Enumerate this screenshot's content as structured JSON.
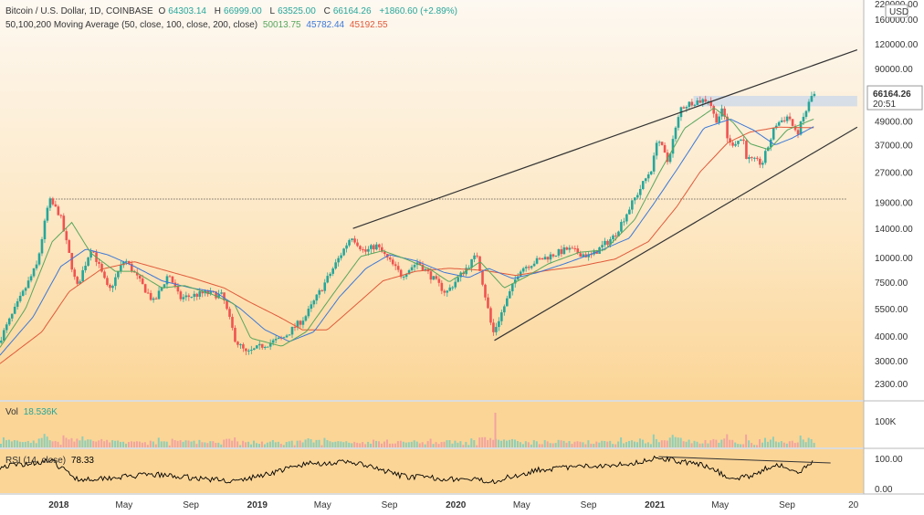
{
  "legend": {
    "symbol": "Bitcoin / U.S. Dollar, 1D, COINBASE",
    "o_label": "O",
    "o_val": "64303.14",
    "h_label": "H",
    "h_val": "66999.00",
    "l_label": "L",
    "l_val": "63525.00",
    "c_label": "C",
    "c_val": "66164.26",
    "change": "+1860.60 (+2.89%)",
    "ma_title": "50,100,200 Moving Average (50, close, 100, close, 200, close)",
    "ma50": "50013.75",
    "ma100": "45782.44",
    "ma200": "45192.55"
  },
  "colors": {
    "ma50": "#58a65c",
    "ma100": "#3c78d8",
    "ma200": "#e05a3a",
    "up": "#26a69a",
    "down": "#ef5350",
    "text": "#333333",
    "bg_top": "#fdf6ee",
    "bg_bottom": "#fbd89e"
  },
  "price_label": {
    "value": "66164.26",
    "countdown": "20:51"
  },
  "currency": "USD",
  "vol": {
    "label": "Vol",
    "value": "18.536K",
    "axis_label": "100K"
  },
  "rsi": {
    "label": "RSI (14, close)",
    "value": "78.33",
    "axis": [
      "100.00",
      "0.00"
    ]
  },
  "chart_data": {
    "type": "candlestick",
    "y_scale": "log",
    "ylim": [
      1900,
      200000
    ],
    "y_ticks": [
      "160000.00",
      "120000.00",
      "90000.00",
      "66164.26",
      "49000.00",
      "37000.00",
      "27000.00",
      "19000.00",
      "14000.00",
      "10000.00",
      "7500.00",
      "5500.00",
      "4000.00",
      "3000.00",
      "2300.00"
    ],
    "x_ticks": [
      "2018",
      "May",
      "Sep",
      "2019",
      "May",
      "Sep",
      "2020",
      "May",
      "Sep",
      "2021",
      "May",
      "Sep",
      "20"
    ],
    "xlim": [
      "2017-09-15",
      "2022-01-20"
    ],
    "close_series": [
      [
        "2017-09-15",
        3700
      ],
      [
        "2017-10-20",
        5800
      ],
      [
        "2017-11-25",
        9200
      ],
      [
        "2017-12-17",
        19500
      ],
      [
        "2018-01-06",
        16500
      ],
      [
        "2018-02-06",
        7000
      ],
      [
        "2018-03-05",
        11300
      ],
      [
        "2018-04-06",
        6700
      ],
      [
        "2018-05-05",
        9800
      ],
      [
        "2018-06-28",
        5900
      ],
      [
        "2018-07-25",
        8300
      ],
      [
        "2018-08-14",
        6200
      ],
      [
        "2018-09-30",
        6600
      ],
      [
        "2018-11-01",
        6400
      ],
      [
        "2018-11-25",
        3800
      ],
      [
        "2018-12-15",
        3250
      ],
      [
        "2019-01-15",
        3600
      ],
      [
        "2019-02-20",
        3900
      ],
      [
        "2019-04-02",
        5000
      ],
      [
        "2019-05-15",
        8000
      ],
      [
        "2019-06-26",
        12900
      ],
      [
        "2019-07-20",
        10600
      ],
      [
        "2019-08-10",
        11500
      ],
      [
        "2019-09-26",
        8100
      ],
      [
        "2019-10-26",
        9500
      ],
      [
        "2019-12-17",
        6600
      ],
      [
        "2020-02-12",
        10300
      ],
      [
        "2020-03-12",
        4100
      ],
      [
        "2020-04-30",
        8700
      ],
      [
        "2020-06-01",
        9600
      ],
      [
        "2020-07-27",
        11000
      ],
      [
        "2020-09-07",
        10100
      ],
      [
        "2020-10-21",
        12800
      ],
      [
        "2020-11-24",
        19000
      ],
      [
        "2020-12-31",
        29000
      ],
      [
        "2021-01-08",
        41000
      ],
      [
        "2021-01-27",
        30500
      ],
      [
        "2021-02-21",
        57000
      ],
      [
        "2021-03-13",
        61000
      ],
      [
        "2021-04-14",
        63000
      ],
      [
        "2021-04-25",
        49000
      ],
      [
        "2021-05-10",
        56000
      ],
      [
        "2021-05-19",
        37000
      ],
      [
        "2021-06-15",
        40000
      ],
      [
        "2021-06-22",
        31500
      ],
      [
        "2021-07-20",
        29800
      ],
      [
        "2021-08-14",
        47000
      ],
      [
        "2021-09-07",
        52000
      ],
      [
        "2021-09-21",
        41000
      ],
      [
        "2021-10-15",
        61000
      ],
      [
        "2021-10-20",
        66164
      ]
    ],
    "ma50": [
      [
        "2017-09-15",
        3500
      ],
      [
        "2017-11-01",
        5500
      ],
      [
        "2017-12-20",
        12000
      ],
      [
        "2018-01-25",
        15000
      ],
      [
        "2018-03-01",
        10500
      ],
      [
        "2018-04-15",
        8500
      ],
      [
        "2018-05-20",
        8500
      ],
      [
        "2018-07-10",
        7000
      ],
      [
        "2018-08-20",
        7200
      ],
      [
        "2018-10-10",
        6500
      ],
      [
        "2018-11-20",
        5800
      ],
      [
        "2018-12-20",
        3900
      ],
      [
        "2019-02-15",
        3550
      ],
      [
        "2019-04-01",
        4200
      ],
      [
        "2019-05-20",
        6500
      ],
      [
        "2019-07-10",
        10100
      ],
      [
        "2019-08-20",
        10800
      ],
      [
        "2019-10-01",
        9800
      ],
      [
        "2019-11-15",
        8700
      ],
      [
        "2019-12-20",
        7500
      ],
      [
        "2020-02-15",
        9500
      ],
      [
        "2020-03-30",
        7000
      ],
      [
        "2020-05-10",
        8000
      ],
      [
        "2020-06-20",
        9300
      ],
      [
        "2020-08-15",
        10600
      ],
      [
        "2020-10-01",
        10900
      ],
      [
        "2020-11-25",
        15500
      ],
      [
        "2021-01-10",
        27000
      ],
      [
        "2021-02-25",
        45000
      ],
      [
        "2021-04-20",
        57000
      ],
      [
        "2021-05-25",
        48000
      ],
      [
        "2021-06-25",
        37500
      ],
      [
        "2021-07-30",
        35000
      ],
      [
        "2021-09-01",
        44000
      ],
      [
        "2021-10-20",
        50013
      ]
    ],
    "ma100": [
      [
        "2017-09-15",
        3200
      ],
      [
        "2017-11-15",
        5000
      ],
      [
        "2018-01-05",
        9000
      ],
      [
        "2018-02-20",
        11000
      ],
      [
        "2018-04-01",
        10300
      ],
      [
        "2018-05-20",
        9000
      ],
      [
        "2018-07-10",
        7600
      ],
      [
        "2018-09-01",
        7000
      ],
      [
        "2018-10-15",
        6700
      ],
      [
        "2018-12-01",
        5500
      ],
      [
        "2019-01-15",
        4300
      ],
      [
        "2019-03-01",
        3750
      ],
      [
        "2019-04-15",
        4200
      ],
      [
        "2019-06-01",
        6300
      ],
      [
        "2019-07-20",
        8800
      ],
      [
        "2019-09-01",
        10300
      ],
      [
        "2019-10-20",
        9600
      ],
      [
        "2019-12-10",
        8400
      ],
      [
        "2020-01-25",
        7900
      ],
      [
        "2020-03-01",
        8800
      ],
      [
        "2020-04-15",
        7800
      ],
      [
        "2020-06-01",
        8400
      ],
      [
        "2020-07-20",
        9300
      ],
      [
        "2020-09-15",
        10600
      ],
      [
        "2020-11-15",
        12500
      ],
      [
        "2021-01-01",
        19000
      ],
      [
        "2021-02-15",
        29000
      ],
      [
        "2021-04-01",
        45000
      ],
      [
        "2021-05-20",
        50000
      ],
      [
        "2021-07-01",
        44000
      ],
      [
        "2021-08-10",
        37000
      ],
      [
        "2021-09-10",
        40000
      ],
      [
        "2021-10-20",
        45782
      ]
    ],
    "ma200": [
      [
        "2017-09-15",
        2900
      ],
      [
        "2017-12-01",
        4200
      ],
      [
        "2018-01-20",
        6700
      ],
      [
        "2018-03-20",
        8700
      ],
      [
        "2018-05-20",
        9500
      ],
      [
        "2018-07-15",
        8600
      ],
      [
        "2018-09-01",
        7900
      ],
      [
        "2018-11-01",
        7000
      ],
      [
        "2018-12-20",
        5900
      ],
      [
        "2019-02-10",
        5000
      ],
      [
        "2019-03-25",
        4300
      ],
      [
        "2019-05-10",
        4300
      ],
      [
        "2019-06-20",
        5400
      ],
      [
        "2019-08-20",
        7600
      ],
      [
        "2019-10-20",
        8500
      ],
      [
        "2019-12-20",
        8800
      ],
      [
        "2020-02-20",
        8600
      ],
      [
        "2020-04-20",
        8100
      ],
      [
        "2020-06-20",
        8600
      ],
      [
        "2020-08-15",
        9000
      ],
      [
        "2020-10-20",
        9800
      ],
      [
        "2020-12-20",
        12000
      ],
      [
        "2021-02-10",
        18000
      ],
      [
        "2021-03-25",
        27000
      ],
      [
        "2021-05-15",
        38000
      ],
      [
        "2021-06-25",
        43000
      ],
      [
        "2021-08-15",
        45500
      ],
      [
        "2021-10-20",
        45192
      ]
    ],
    "trendlines": [
      {
        "from": [
          "2019-06-26",
          14000
        ],
        "to": [
          "2022-01-08",
          112000
        ]
      },
      {
        "from": [
          "2020-03-12",
          3800
        ],
        "to": [
          "2022-01-08",
          45500
        ]
      }
    ],
    "hline": 19700,
    "resistance_zone": {
      "from": "2021-03-13",
      "to": "2022-01-08",
      "low": 58000,
      "high": 65500
    },
    "rsi_series": [
      [
        "2017-09-15",
        62
      ],
      [
        "2017-12-17",
        78
      ],
      [
        "2018-02-06",
        30
      ],
      [
        "2018-06-28",
        42
      ],
      [
        "2018-11-25",
        25
      ],
      [
        "2019-04-02",
        70
      ],
      [
        "2019-06-26",
        74
      ],
      [
        "2019-09-26",
        38
      ],
      [
        "2020-03-12",
        26
      ],
      [
        "2020-06-01",
        55
      ],
      [
        "2020-11-24",
        72
      ],
      [
        "2021-01-08",
        86
      ],
      [
        "2021-04-14",
        62
      ],
      [
        "2021-05-19",
        30
      ],
      [
        "2021-06-22",
        38
      ],
      [
        "2021-08-14",
        70
      ],
      [
        "2021-09-21",
        44
      ],
      [
        "2021-10-20",
        78
      ]
    ],
    "rsi_trendline": {
      "from": [
        "2021-01-08",
        88
      ],
      "to": [
        "2021-11-20",
        72
      ]
    }
  }
}
